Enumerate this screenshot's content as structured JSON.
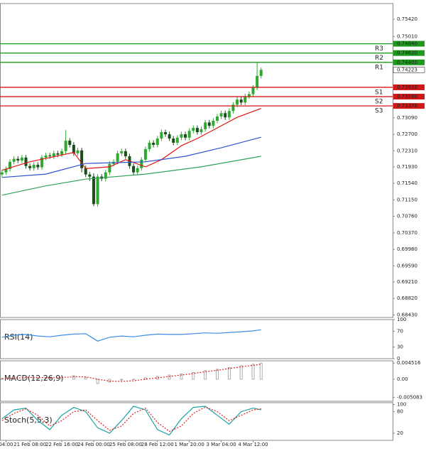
{
  "chart_data": [
    {
      "type": "candlestick",
      "xlim": [
        -0.5,
        98
      ],
      "ylim": [
        0.6837,
        0.7579
      ],
      "yticks": [
        {
          "value": 0.7542,
          "label": "0.75420"
        },
        {
          "value": 0.7501,
          "label": "0.75010"
        },
        {
          "value": 0.7309,
          "label": "0.73090"
        },
        {
          "value": 0.727,
          "label": "0.72700"
        },
        {
          "value": 0.7231,
          "label": "0.72310"
        },
        {
          "value": 0.7193,
          "label": "0.71930"
        },
        {
          "value": 0.7154,
          "label": "0.71540"
        },
        {
          "value": 0.7115,
          "label": "0.71150"
        },
        {
          "value": 0.7076,
          "label": "0.70760"
        },
        {
          "value": 0.7037,
          "label": "0.70370"
        },
        {
          "value": 0.6998,
          "label": "0.69980"
        },
        {
          "value": 0.6959,
          "label": "0.69590"
        },
        {
          "value": 0.6921,
          "label": "0.69210"
        },
        {
          "value": 0.6882,
          "label": "0.68820"
        },
        {
          "value": 0.6843,
          "label": "0.68430"
        }
      ],
      "xticks": [
        {
          "value": 1,
          "label": "04:00"
        },
        {
          "value": 7,
          "label": "21 Feb 08:00"
        },
        {
          "value": 15,
          "label": "22 Feb 16:00"
        },
        {
          "value": 23,
          "label": "24 Feb 00:00"
        },
        {
          "value": 31,
          "label": "25 Feb 08:00"
        },
        {
          "value": 39,
          "label": "28 Feb 12:00"
        },
        {
          "value": 47,
          "label": "1 Mar 20:00"
        },
        {
          "value": 55,
          "label": "3 Mar 04:00"
        },
        {
          "value": 63,
          "label": "4 Mar 12:00"
        }
      ],
      "up_color": "#2fa82f",
      "down_color": "#1a4d1a",
      "open": [
        0.7175,
        0.718,
        0.7188,
        0.7205,
        0.7212,
        0.7208,
        0.7215,
        0.7195,
        0.719,
        0.7198,
        0.7192,
        0.7215,
        0.722,
        0.7218,
        0.7225,
        0.7222,
        0.723,
        0.7255,
        0.7245,
        0.7225,
        0.7232,
        0.719,
        0.7175,
        0.717,
        0.7105,
        0.717,
        0.7165,
        0.718,
        0.72,
        0.7205,
        0.7225,
        0.723,
        0.7218,
        0.7195,
        0.718,
        0.719,
        0.721,
        0.7235,
        0.725,
        0.7245,
        0.726,
        0.7275,
        0.727,
        0.726,
        0.725,
        0.7262,
        0.727,
        0.7262,
        0.7278,
        0.7285,
        0.7275,
        0.7282,
        0.7298,
        0.729,
        0.7302,
        0.7312,
        0.732,
        0.731,
        0.7325,
        0.734,
        0.7352,
        0.7345,
        0.736,
        0.7365,
        0.738,
        0.7408
      ],
      "high": [
        0.7186,
        0.7194,
        0.7211,
        0.7218,
        0.7218,
        0.7221,
        0.7221,
        0.7201,
        0.7204,
        0.7204,
        0.7221,
        0.7226,
        0.7226,
        0.7231,
        0.7231,
        0.7236,
        0.728,
        0.7261,
        0.7251,
        0.7238,
        0.7238,
        0.7196,
        0.7181,
        0.7178,
        0.7176,
        0.7176,
        0.7186,
        0.7206,
        0.7211,
        0.7231,
        0.7236,
        0.7236,
        0.7224,
        0.7201,
        0.7196,
        0.7216,
        0.7241,
        0.7256,
        0.7256,
        0.7266,
        0.7281,
        0.7281,
        0.7276,
        0.7266,
        0.7268,
        0.7276,
        0.7276,
        0.7284,
        0.7291,
        0.7291,
        0.7288,
        0.7304,
        0.7304,
        0.7308,
        0.7318,
        0.7326,
        0.7326,
        0.7331,
        0.7346,
        0.7358,
        0.7358,
        0.7366,
        0.7371,
        0.7386,
        0.7441,
        0.7428
      ],
      "low": [
        0.7169,
        0.7174,
        0.7182,
        0.7199,
        0.7202,
        0.7202,
        0.7189,
        0.7184,
        0.7184,
        0.7186,
        0.7186,
        0.7209,
        0.7212,
        0.7212,
        0.7216,
        0.7216,
        0.7224,
        0.7239,
        0.7219,
        0.7219,
        0.718,
        0.7169,
        0.716,
        0.71,
        0.7099,
        0.7159,
        0.7159,
        0.7174,
        0.7194,
        0.7199,
        0.7219,
        0.7212,
        0.7189,
        0.7174,
        0.7174,
        0.7184,
        0.7204,
        0.7229,
        0.7239,
        0.7239,
        0.7254,
        0.7264,
        0.7254,
        0.7244,
        0.7244,
        0.7256,
        0.7256,
        0.7256,
        0.7272,
        0.7269,
        0.7269,
        0.7276,
        0.7284,
        0.7284,
        0.7296,
        0.7306,
        0.7304,
        0.7304,
        0.7319,
        0.7334,
        0.7339,
        0.7339,
        0.7354,
        0.7359,
        0.7374,
        0.7402
      ],
      "close": [
        0.718,
        0.7188,
        0.7205,
        0.7212,
        0.7208,
        0.7215,
        0.7195,
        0.719,
        0.7198,
        0.7192,
        0.7215,
        0.722,
        0.7218,
        0.7225,
        0.7222,
        0.723,
        0.7255,
        0.7245,
        0.7225,
        0.7232,
        0.719,
        0.7175,
        0.717,
        0.7105,
        0.717,
        0.7165,
        0.718,
        0.72,
        0.7205,
        0.7225,
        0.723,
        0.7218,
        0.7195,
        0.718,
        0.719,
        0.721,
        0.7235,
        0.725,
        0.7245,
        0.726,
        0.7275,
        0.727,
        0.726,
        0.725,
        0.7262,
        0.727,
        0.7262,
        0.7278,
        0.7285,
        0.7275,
        0.7282,
        0.7298,
        0.729,
        0.7302,
        0.7312,
        0.732,
        0.731,
        0.7325,
        0.734,
        0.7352,
        0.7345,
        0.736,
        0.7365,
        0.738,
        0.7408,
        0.74223
      ],
      "overlays": [
        {
          "color": "#e01414",
          "x": [
            0,
            7,
            18,
            21,
            27,
            31,
            36,
            40,
            45,
            49,
            54,
            59,
            65
          ],
          "values": [
            0.7185,
            0.7205,
            0.7227,
            0.7189,
            0.7193,
            0.721,
            0.7193,
            0.721,
            0.7243,
            0.726,
            0.7285,
            0.731,
            0.7331
          ]
        },
        {
          "color": "#3050d0",
          "x": [
            0,
            11,
            21,
            36,
            46,
            55,
            65
          ],
          "values": [
            0.7168,
            0.7176,
            0.7201,
            0.7205,
            0.7218,
            0.7238,
            0.7263
          ]
        },
        {
          "color": "#2ea35a",
          "x": [
            0,
            11,
            21,
            36,
            50,
            65
          ],
          "values": [
            0.7126,
            0.7148,
            0.7164,
            0.7176,
            0.7193,
            0.7218
          ]
        }
      ],
      "levels": [
        {
          "name": "R3",
          "value": 0.7484,
          "label": "0.74840",
          "color": "#1c9a1c"
        },
        {
          "name": "R2",
          "value": 0.7462,
          "label": "0.74620",
          "color": "#1c9a1c"
        },
        {
          "name": "R1",
          "value": 0.744,
          "label": "0.74400",
          "color": "#1c9a1c"
        },
        {
          "name": "S1",
          "value": 0.7381,
          "label": "0.73810",
          "color": "#d01818"
        },
        {
          "name": "S2",
          "value": 0.7359,
          "label": "0.73590",
          "color": "#d01818"
        },
        {
          "name": "S3",
          "value": 0.7337,
          "label": "0.73370",
          "color": "#d01818"
        }
      ],
      "last": {
        "value": 0.74223,
        "label": "0.74223"
      }
    },
    {
      "type": "line",
      "title": "RSI(14)",
      "xlim": [
        -0.5,
        98
      ],
      "ylim": [
        0,
        100
      ],
      "yticks": [
        0,
        30,
        70,
        100
      ],
      "x": [
        0,
        3,
        6,
        9,
        12,
        15,
        18,
        21,
        24,
        27,
        30,
        33,
        36,
        39,
        42,
        45,
        48,
        51,
        54,
        57,
        60,
        63,
        65
      ],
      "series": [
        {
          "color": "#3a8ee6",
          "values": [
            55,
            60,
            62,
            58,
            56,
            60,
            63,
            64,
            45,
            55,
            58,
            56,
            60,
            63,
            62,
            62,
            64,
            66,
            65,
            67,
            69,
            71,
            74
          ]
        }
      ]
    },
    {
      "type": "macd",
      "title": "MACD(12,26,9)",
      "xlim": [
        -0.5,
        98
      ],
      "ylim": [
        -0.00615,
        0.00516
      ],
      "yticks": [
        -0.005083,
        {
          "value": 0,
          "label": "0.00"
        },
        0.004516
      ],
      "x": [
        0,
        3,
        6,
        9,
        12,
        15,
        18,
        21,
        24,
        27,
        30,
        33,
        36,
        39,
        42,
        45,
        48,
        51,
        54,
        57,
        60,
        63,
        65
      ],
      "series": [
        {
          "kind": "bar",
          "color": "#9a9a9a",
          "values": [
            0.0002,
            0.0005,
            0.0006,
            0.0004,
            0.0003,
            0.0006,
            0.001,
            0.0005,
            -0.0012,
            -0.0008,
            -0.0002,
            0,
            0.0004,
            0.0008,
            0.0012,
            0.0015,
            0.0019,
            0.0024,
            0.0028,
            0.0033,
            0.0038,
            0.0042,
            0.0045
          ]
        },
        {
          "kind": "line",
          "color": "#e02020",
          "values": [
            0.0002,
            0.0003,
            0.0005,
            0.0005,
            0.0004,
            0.0005,
            0.0007,
            0.0007,
            0,
            -0.0005,
            -0.0006,
            -0.0004,
            0,
            0.0004,
            0.0008,
            0.0012,
            0.0016,
            0.0021,
            0.0025,
            0.003,
            0.0035,
            0.0039,
            0.0042
          ]
        }
      ]
    },
    {
      "type": "line",
      "title": "Stoch(5,5,3)",
      "xlim": [
        -0.5,
        98
      ],
      "ylim": [
        0,
        105
      ],
      "yticks": [
        20,
        80,
        100
      ],
      "x": [
        0,
        3,
        6,
        9,
        12,
        15,
        18,
        21,
        24,
        27,
        30,
        33,
        36,
        39,
        42,
        45,
        48,
        51,
        54,
        57,
        60,
        63,
        65
      ],
      "series": [
        {
          "color": "#1aa3a3",
          "values": [
            60,
            85,
            90,
            55,
            30,
            70,
            92,
            80,
            35,
            20,
            55,
            95,
            85,
            30,
            15,
            60,
            92,
            95,
            70,
            45,
            80,
            90,
            85
          ]
        },
        {
          "color": "#e02020",
          "dashed": true,
          "values": [
            55,
            75,
            88,
            70,
            40,
            55,
            80,
            85,
            55,
            28,
            40,
            75,
            90,
            50,
            25,
            40,
            75,
            93,
            80,
            55,
            70,
            85,
            88
          ]
        }
      ]
    }
  ]
}
